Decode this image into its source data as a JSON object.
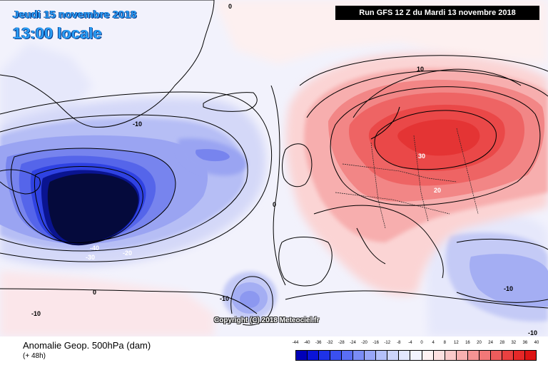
{
  "header": {
    "date": "Jeudi 15 novembre 2018",
    "time": "13:00 locale",
    "run": "Run GFS 12 Z du Mardi 13 novembre 2018"
  },
  "copyright": "Copyright (C) 2018 Meteociel.fr",
  "footer": {
    "title": "Anomalie Geop. 500hPa (dam)",
    "lead": "(+ 48h)"
  },
  "legend": {
    "labels": [
      "-44",
      "-40",
      "-36",
      "-32",
      "-28",
      "-24",
      "-20",
      "-16",
      "-12",
      "-8",
      "-4",
      "0",
      "4",
      "8",
      "12",
      "16",
      "20",
      "24",
      "28",
      "32",
      "36",
      "40"
    ],
    "colors": [
      "#0000b8",
      "#0a14d8",
      "#1e32e8",
      "#3a50f0",
      "#5a6ef4",
      "#7a8cf6",
      "#98a6f8",
      "#b4c0fa",
      "#ccd4fb",
      "#e2e7fd",
      "#f2f4fe",
      "#fef2f2",
      "#fde0e0",
      "#fbcaca",
      "#f8b0b0",
      "#f59494",
      "#f27878",
      "#ee5c5c",
      "#ea4040",
      "#e52828",
      "#de1414"
    ]
  },
  "contour_labels": [
    {
      "name": "contour-label-0-top",
      "text": "0"
    },
    {
      "name": "contour-label-10-north",
      "text": "10"
    },
    {
      "name": "contour-label-minus10-atlantic",
      "text": "-10"
    },
    {
      "name": "contour-label-30-europe",
      "text": "30"
    },
    {
      "name": "contour-label-20-europe",
      "text": "20"
    },
    {
      "name": "contour-label-0-biscay",
      "text": "0"
    },
    {
      "name": "contour-label-minus40-low",
      "text": "-40"
    },
    {
      "name": "contour-label-minus30-low",
      "text": "-30"
    },
    {
      "name": "contour-label-minus20-low",
      "text": "-20"
    },
    {
      "name": "contour-label-0-south",
      "text": "0"
    },
    {
      "name": "contour-label-minus10-azores",
      "text": "-10"
    },
    {
      "name": "contour-label-minus10-greece",
      "text": "-10"
    },
    {
      "name": "contour-label-minus10-sw",
      "text": "-10"
    },
    {
      "name": "contour-label-minus10-se",
      "text": "-10"
    }
  ]
}
